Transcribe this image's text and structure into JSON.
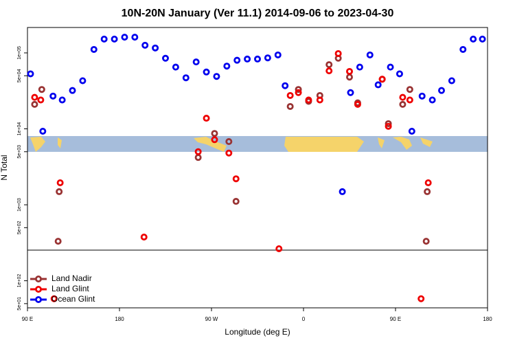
{
  "chart_data": {
    "type": "scatter",
    "title": "10N-20N January (Ver 11.1)   2014-09-06 to 2023-04-30",
    "x_label": "Longitude (deg E)",
    "y_label": "N Total",
    "y_log": true,
    "legend": "bottom-left",
    "xlim": [
      90,
      540
    ],
    "ylim": [
      44,
      216000
    ],
    "xticks": [
      {
        "value": 90,
        "label": "90 E"
      },
      {
        "value": 180,
        "label": "180"
      },
      {
        "value": 270,
        "label": "90 W"
      },
      {
        "value": 360,
        "label": "0"
      },
      {
        "value": 450,
        "label": "90 E"
      },
      {
        "value": 540,
        "label": "180"
      }
    ],
    "yticks": [
      {
        "value": 100000,
        "label": "1e+05"
      },
      {
        "value": 50000,
        "label": "5e+04"
      },
      {
        "value": 10000,
        "label": "1e+04"
      },
      {
        "value": 5000,
        "label": "5e+03"
      },
      {
        "value": 1000,
        "label": "1e+03"
      },
      {
        "value": 500,
        "label": "5e+02"
      },
      {
        "value": 100,
        "label": "1e+02"
      },
      {
        "value": 50,
        "label": "5e+01"
      }
    ],
    "series": [
      {
        "name": "Land Nadir",
        "color": "#993333",
        "x": [
          97,
          104,
          120,
          121,
          257,
          273,
          287,
          294,
          347,
          355,
          365,
          376,
          385,
          394,
          405,
          413,
          437,
          443,
          457,
          464,
          480,
          481
        ],
        "values": [
          21000,
          33000,
          331,
          1490,
          4200,
          8700,
          6800,
          1110,
          19700,
          33000,
          23000,
          27500,
          70000,
          85000,
          48000,
          22000,
          45000,
          11700,
          21000,
          33000,
          331,
          1490
        ]
      },
      {
        "name": "Land Glint",
        "color": "#ee0000",
        "x": [
          97,
          103,
          122,
          116,
          204,
          265,
          257,
          273,
          287,
          294,
          336,
          347,
          355,
          365,
          376,
          385,
          394,
          405,
          413,
          437,
          443,
          457,
          464,
          475,
          482
        ],
        "values": [
          26000,
          24000,
          1950,
          58,
          376,
          13800,
          5000,
          7200,
          4800,
          2200,
          264,
          27500,
          30000,
          24000,
          24000,
          58000,
          98000,
          57000,
          21000,
          45000,
          10800,
          26000,
          24000,
          58,
          1950
        ]
      },
      {
        "name": "Ocean Glint",
        "color": "#0000ee",
        "x": [
          93,
          105,
          115,
          124,
          134,
          144,
          155,
          165,
          175,
          185,
          195,
          205,
          215,
          225,
          235,
          245,
          255,
          265,
          275,
          285,
          295,
          305,
          315,
          325,
          335,
          342,
          398,
          406,
          415,
          425,
          433,
          445,
          454,
          466,
          476,
          486,
          495,
          505,
          516,
          526,
          535
        ],
        "values": [
          53000,
          9300,
          27000,
          24000,
          32000,
          43000,
          111000,
          152000,
          152000,
          161000,
          161000,
          126000,
          116000,
          85000,
          65000,
          47000,
          76000,
          56000,
          49000,
          67000,
          80000,
          83000,
          83000,
          86000,
          94000,
          37000,
          1490,
          30000,
          65000,
          94000,
          38000,
          65000,
          53000,
          9300,
          27000,
          24000,
          32000,
          43000,
          111000,
          152000,
          152000
        ]
      }
    ]
  }
}
